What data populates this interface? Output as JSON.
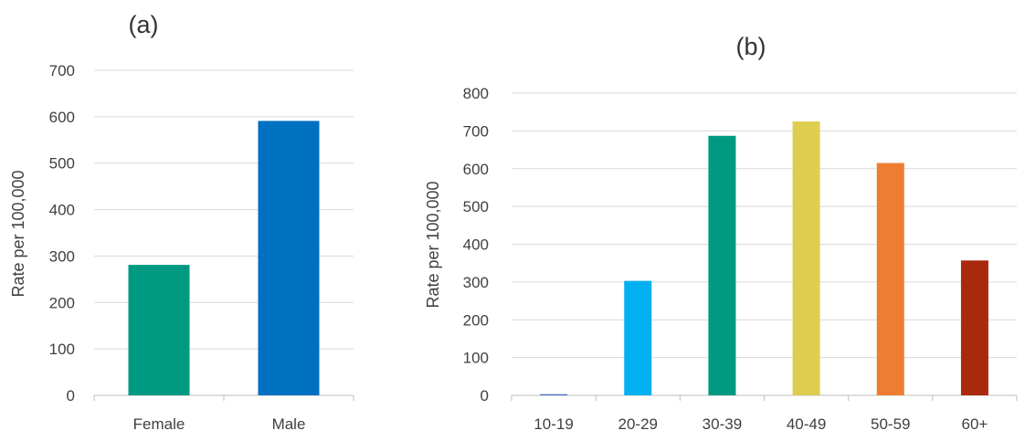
{
  "chart_data": [
    {
      "type": "bar",
      "title": "(a)",
      "xlabel": "",
      "ylabel": "Rate per 100,000",
      "ylim": [
        0,
        700
      ],
      "yticks": [
        0,
        100,
        200,
        300,
        400,
        500,
        600,
        700
      ],
      "grid": true,
      "categories": [
        "Female",
        "Male"
      ],
      "values": [
        281,
        591
      ],
      "colors": [
        "#009a82",
        "#0070c0"
      ]
    },
    {
      "type": "bar",
      "title": "(b)",
      "xlabel": "",
      "ylabel": "Rate per 100,000",
      "ylim": [
        0,
        800
      ],
      "yticks": [
        0,
        100,
        200,
        300,
        400,
        500,
        600,
        700,
        800
      ],
      "grid": true,
      "categories": [
        "10-19",
        "20-29",
        "30-39",
        "40-49",
        "50-59",
        "60+"
      ],
      "values": [
        3,
        303,
        687,
        725,
        615,
        357
      ],
      "colors": [
        "#4472c4",
        "#00b0f0",
        "#009a82",
        "#dfcd4f",
        "#ed7d31",
        "#a9290f"
      ]
    }
  ]
}
